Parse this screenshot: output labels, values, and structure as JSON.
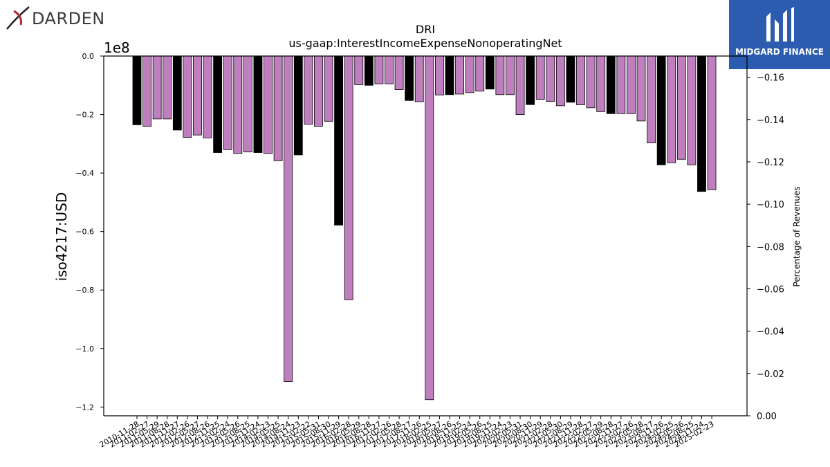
{
  "brand": {
    "left_logo_text": "DARDEN",
    "right_logo_text": "MIDGARD FINANCE",
    "right_logo_bg": "#2b5cb0"
  },
  "chart_data": {
    "type": "bar",
    "title": "DRI",
    "subtitle": "us-gaap:InterestIncomeExpenseNonoperatingNet",
    "ylabel": "iso4217:USD",
    "y2label": "Percentage of Revenues",
    "y_offset_label": "1e8",
    "ylim": [
      -1.23,
      0.0
    ],
    "y2lim": [
      0.0,
      -0.17
    ],
    "yticks": [
      "0.0",
      "−0.2",
      "−0.4",
      "−0.6",
      "−0.8",
      "−1.0",
      "−1.2"
    ],
    "y2ticks": [
      "0.00",
      "−0.02",
      "−0.04",
      "−0.06",
      "−0.08",
      "−0.10",
      "−0.12",
      "−0.14",
      "−0.16"
    ],
    "grid": false,
    "colors": {
      "annual": "#000000",
      "quarterly": "#bf7fbf"
    },
    "categories": [
      "2010-11-28",
      "2011-02-27",
      "2011-05-29",
      "2011-08-28",
      "2011-11-27",
      "2012-02-26",
      "2012-05-27",
      "2012-08-26",
      "2012-11-25",
      "2013-02-24",
      "2013-05-26",
      "2013-08-25",
      "2013-11-24",
      "2014-02-23",
      "2014-05-25",
      "2014-08-24",
      "2014-11-23",
      "2015-02-22",
      "2015-05-31",
      "2015-08-30",
      "2015-11-29",
      "2016-02-28",
      "2016-05-29",
      "2016-08-28",
      "2016-11-27",
      "2017-02-26",
      "2017-05-28",
      "2017-08-27",
      "2017-11-26",
      "2018-02-25",
      "2018-05-27",
      "2018-08-26",
      "2018-11-25",
      "2019-02-24",
      "2019-05-26",
      "2019-08-25",
      "2019-11-24",
      "2020-02-23",
      "2020-05-31",
      "2020-08-30",
      "2020-11-29",
      "2021-02-28",
      "2021-05-30",
      "2021-08-29",
      "2021-11-28",
      "2022-02-27",
      "2022-05-29",
      "2022-08-28",
      "2022-11-27",
      "2023-02-26",
      "2023-05-28",
      "2023-08-27",
      "2023-11-26",
      "2024-02-25",
      "2024-05-26",
      "2024-08-25",
      "2024-11-24",
      "2025-02-23"
    ],
    "values": [
      -0.235,
      -0.24,
      -0.215,
      -0.215,
      -0.253,
      -0.278,
      -0.27,
      -0.28,
      -0.33,
      -0.32,
      -0.333,
      -0.328,
      -0.33,
      -0.333,
      -0.358,
      -1.113,
      -0.338,
      -0.233,
      -0.24,
      -0.223,
      -0.578,
      -0.833,
      -0.098,
      -0.1,
      -0.095,
      -0.095,
      -0.115,
      -0.152,
      -0.156,
      -1.175,
      -0.133,
      -0.132,
      -0.13,
      -0.125,
      -0.12,
      -0.113,
      -0.132,
      -0.132,
      -0.2,
      -0.166,
      -0.148,
      -0.155,
      -0.17,
      -0.158,
      -0.167,
      -0.177,
      -0.19,
      -0.197,
      -0.197,
      -0.197,
      -0.222,
      -0.297,
      -0.372,
      -0.365,
      -0.353,
      -0.372,
      -0.463,
      -0.457
    ],
    "bar_kind": [
      "annual",
      "quarterly",
      "quarterly",
      "quarterly",
      "annual",
      "quarterly",
      "quarterly",
      "quarterly",
      "annual",
      "quarterly",
      "quarterly",
      "quarterly",
      "annual",
      "quarterly",
      "quarterly",
      "quarterly",
      "annual",
      "quarterly",
      "quarterly",
      "quarterly",
      "annual",
      "quarterly",
      "quarterly",
      "annual",
      "quarterly",
      "quarterly",
      "quarterly",
      "annual",
      "quarterly",
      "quarterly",
      "quarterly",
      "annual",
      "quarterly",
      "quarterly",
      "quarterly",
      "annual",
      "quarterly",
      "quarterly",
      "quarterly",
      "annual",
      "quarterly",
      "quarterly",
      "quarterly",
      "annual",
      "quarterly",
      "quarterly",
      "quarterly",
      "annual",
      "quarterly",
      "quarterly",
      "quarterly",
      "quarterly",
      "annual",
      "quarterly",
      "quarterly",
      "quarterly",
      "annual",
      "quarterly"
    ]
  }
}
